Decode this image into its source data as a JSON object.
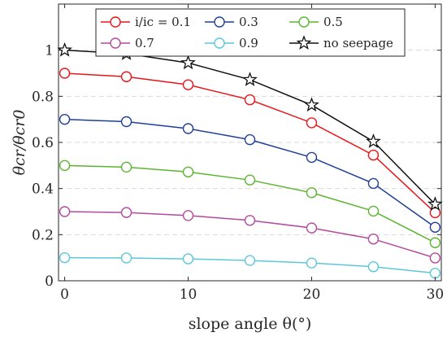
{
  "chart_data": {
    "type": "line",
    "x": [
      0,
      5,
      10,
      15,
      20,
      25,
      30
    ],
    "series": [
      {
        "name": "i/ic = 0.1",
        "color": "#e8161a",
        "marker": "circle",
        "values": [
          0.9,
          0.885,
          0.85,
          0.785,
          0.685,
          0.545,
          0.295
        ]
      },
      {
        "name": "0.3",
        "color": "#1f3f98",
        "marker": "circle",
        "values": [
          0.7,
          0.69,
          0.66,
          0.612,
          0.535,
          0.422,
          0.232
        ]
      },
      {
        "name": "0.5",
        "color": "#5cb531",
        "marker": "circle",
        "values": [
          0.5,
          0.493,
          0.472,
          0.437,
          0.382,
          0.302,
          0.165
        ]
      },
      {
        "name": "0.7",
        "color": "#b5499b",
        "marker": "circle",
        "values": [
          0.3,
          0.296,
          0.283,
          0.262,
          0.229,
          0.181,
          0.099
        ]
      },
      {
        "name": "0.9",
        "color": "#5bc8d8",
        "marker": "circle",
        "values": [
          0.1,
          0.099,
          0.095,
          0.088,
          0.077,
          0.061,
          0.033
        ]
      },
      {
        "name": "no seepage",
        "color": "#111111",
        "marker": "star",
        "values": [
          1.0,
          0.985,
          0.945,
          0.872,
          0.762,
          0.604,
          0.332
        ]
      }
    ],
    "xlabel": "slope angle θ(°)",
    "ylabel": "θcr/θcr0",
    "xlim": [
      -0.5,
      30.5
    ],
    "ylim": [
      0,
      1.2
    ],
    "xticks": [
      "0",
      "10",
      "20",
      "30"
    ],
    "yticks": [
      "0",
      "0.2",
      "0.4",
      "0.6",
      "0.8",
      "1"
    ],
    "grid": "horizontal dashed",
    "legend_position": "top"
  }
}
